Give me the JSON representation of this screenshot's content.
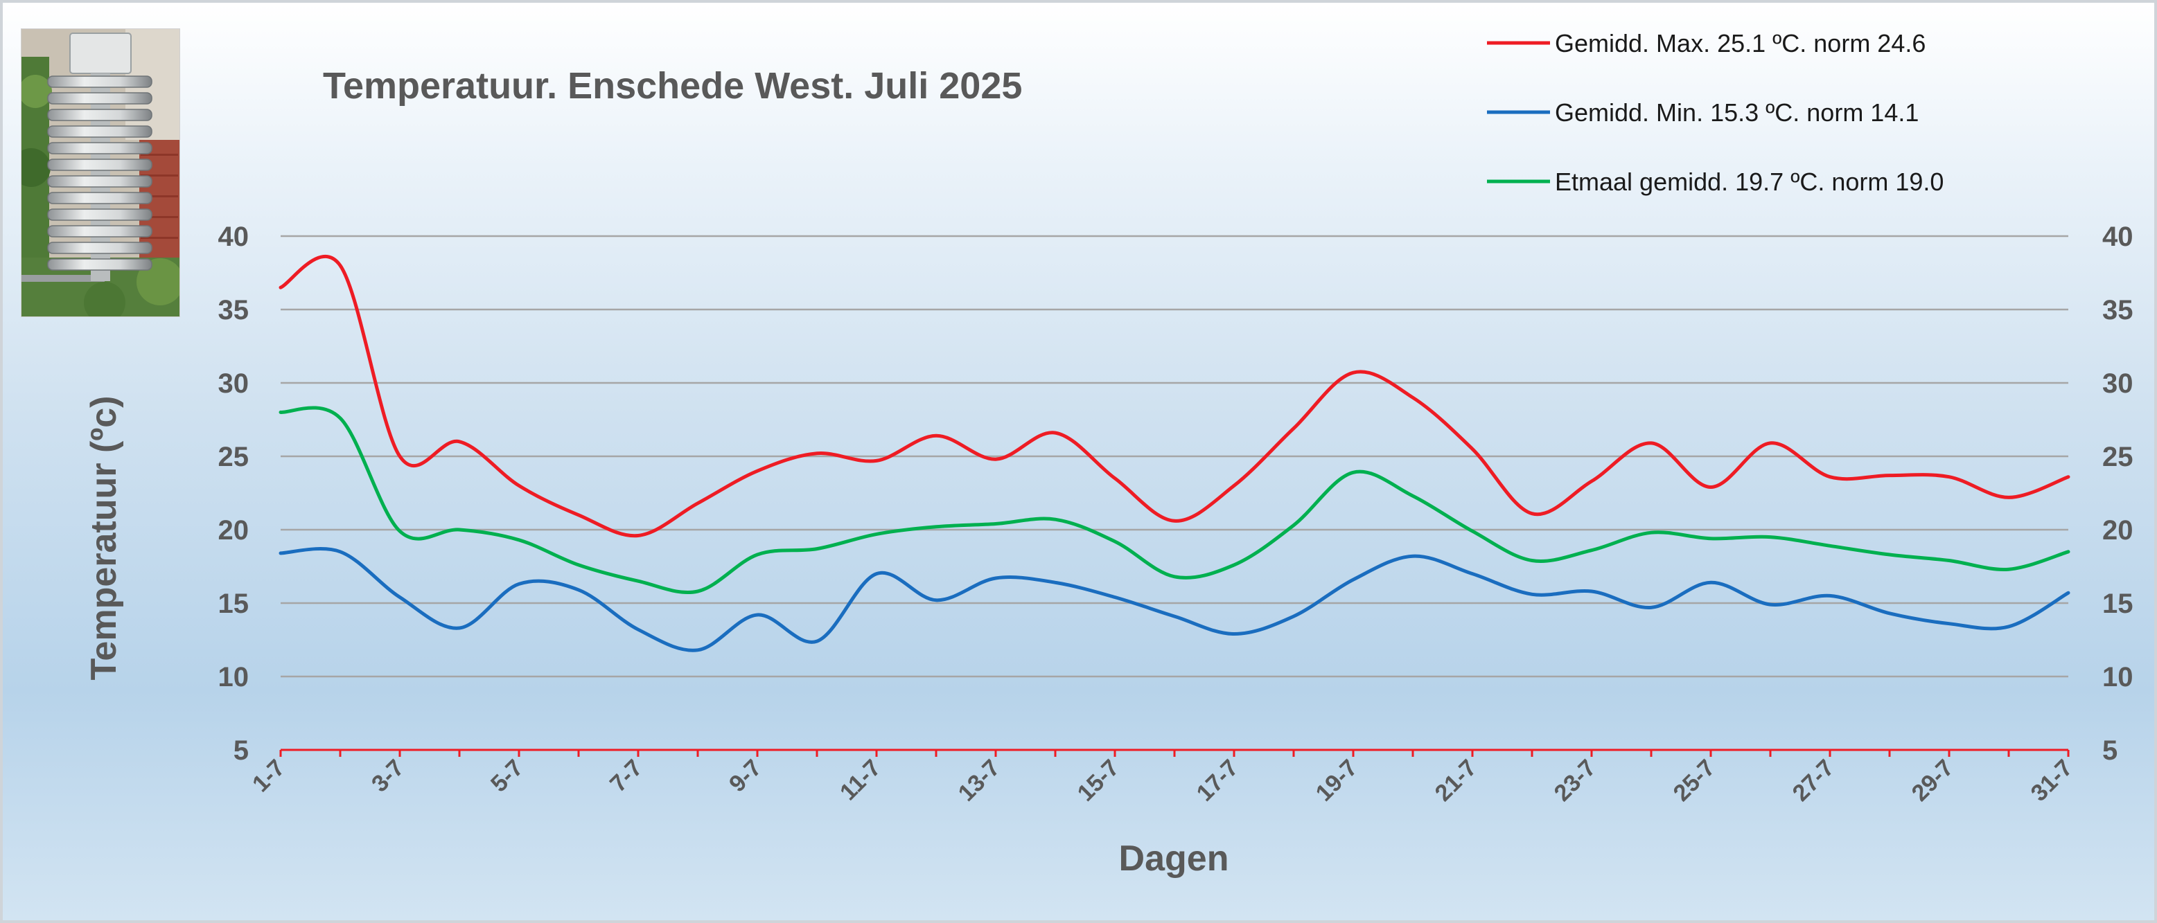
{
  "chart_data": {
    "type": "line",
    "title": "Temperatuur. Enschede West. Juli 2025",
    "xlabel": "Dagen",
    "ylabel": "Temperatuur (ºc)",
    "ylim": [
      5,
      40
    ],
    "yticks": [
      "5",
      "10",
      "15",
      "20",
      "25",
      "30",
      "35",
      "40"
    ],
    "xtick_labels": [
      "1-7",
      "3-7",
      "5-7",
      "7-7",
      "9-7",
      "11-7",
      "13-7",
      "15-7",
      "17-7",
      "19-7",
      "21-7",
      "23-7",
      "25-7",
      "27-7",
      "29-7",
      "31-7"
    ],
    "x": [
      "1-7",
      "2-7",
      "3-7",
      "4-7",
      "5-7",
      "6-7",
      "7-7",
      "8-7",
      "9-7",
      "10-7",
      "11-7",
      "12-7",
      "13-7",
      "14-7",
      "15-7",
      "16-7",
      "17-7",
      "18-7",
      "19-7",
      "20-7",
      "21-7",
      "22-7",
      "23-7",
      "24-7",
      "25-7",
      "26-7",
      "27-7",
      "28-7",
      "29-7",
      "30-7",
      "31-7"
    ],
    "grid": true,
    "legend_position": "top-right",
    "series": [
      {
        "name": "Gemidd. Max. 25.1  ºC. norm 24.6",
        "color": "#ee1c24",
        "values": [
          36.5,
          38.0,
          25.0,
          26.0,
          23.0,
          21.0,
          19.6,
          21.8,
          24.0,
          25.2,
          24.7,
          26.4,
          24.8,
          26.6,
          23.5,
          20.6,
          23.0,
          26.9,
          30.7,
          29.0,
          25.5,
          21.1,
          23.3,
          25.9,
          22.9,
          25.9,
          23.6,
          23.7,
          23.6,
          22.2,
          23.6
        ]
      },
      {
        "name": "Gemidd. Min. 15.3  ºC. norm 14.1",
        "color": "#1a6dbf",
        "values": [
          18.4,
          18.5,
          15.4,
          13.3,
          16.3,
          15.9,
          13.2,
          11.8,
          14.2,
          12.4,
          17.0,
          15.2,
          16.7,
          16.4,
          15.4,
          14.1,
          12.9,
          14.1,
          16.6,
          18.2,
          17.0,
          15.6,
          15.8,
          14.7,
          16.4,
          14.9,
          15.5,
          14.3,
          13.6,
          13.4,
          15.7
        ]
      },
      {
        "name": "Etmaal gemidd. 19.7  ºC. norm 19.0",
        "color": "#00b04f",
        "values": [
          28.0,
          27.6,
          19.9,
          20.0,
          19.3,
          17.6,
          16.5,
          15.8,
          18.3,
          18.7,
          19.7,
          20.2,
          20.4,
          20.7,
          19.2,
          16.8,
          17.6,
          20.3,
          23.9,
          22.3,
          19.9,
          17.9,
          18.6,
          19.8,
          19.4,
          19.5,
          18.9,
          18.3,
          17.9,
          17.3,
          18.5
        ]
      }
    ]
  }
}
